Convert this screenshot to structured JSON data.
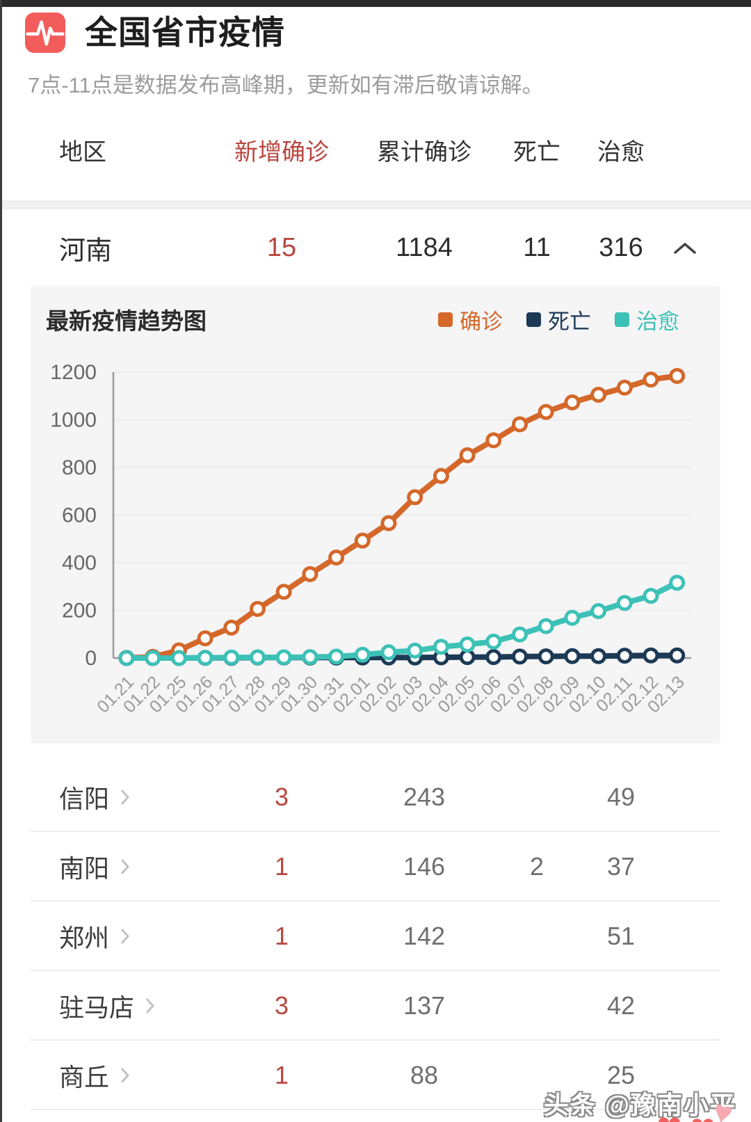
{
  "header": {
    "title": "全国省市疫情",
    "subtitle": "7点-11点是数据发布高峰期，更新如有滞后敬请谅解。"
  },
  "table": {
    "columns": {
      "region": "地区",
      "new_confirmed": "新增确诊",
      "total_confirmed": "累计确诊",
      "deaths": "死亡",
      "cured": "治愈"
    },
    "province": {
      "name": "河南",
      "new_confirmed": "15",
      "total_confirmed": "1184",
      "deaths": "11",
      "cured": "316"
    },
    "cities": [
      {
        "name": "信阳",
        "new_confirmed": "3",
        "total_confirmed": "243",
        "deaths": "",
        "cured": "49"
      },
      {
        "name": "南阳",
        "new_confirmed": "1",
        "total_confirmed": "146",
        "deaths": "2",
        "cured": "37"
      },
      {
        "name": "郑州",
        "new_confirmed": "1",
        "total_confirmed": "142",
        "deaths": "",
        "cured": "51"
      },
      {
        "name": "驻马店",
        "new_confirmed": "3",
        "total_confirmed": "137",
        "deaths": "",
        "cured": "42"
      },
      {
        "name": "商丘",
        "new_confirmed": "1",
        "total_confirmed": "88",
        "deaths": "",
        "cured": "25"
      }
    ]
  },
  "chart": {
    "title": "最新疫情趋势图"
  },
  "chart_data": {
    "type": "line",
    "title": "最新疫情趋势图",
    "x": [
      "01.21",
      "01.22",
      "01.25",
      "01.26",
      "01.27",
      "01.28",
      "01.29",
      "01.30",
      "01.31",
      "02.01",
      "02.02",
      "02.03",
      "02.04",
      "02.05",
      "02.06",
      "02.07",
      "02.08",
      "02.09",
      "02.10",
      "02.11",
      "02.12",
      "02.13"
    ],
    "series": [
      {
        "name": "确诊",
        "color": "#d4682a",
        "values": [
          1,
          5,
          32,
          83,
          128,
          206,
          278,
          352,
          422,
          493,
          566,
          675,
          764,
          851,
          914,
          981,
          1033,
          1073,
          1105,
          1135,
          1169,
          1184
        ]
      },
      {
        "name": "死亡",
        "color": "#1c3a55",
        "values": [
          0,
          0,
          0,
          1,
          1,
          2,
          2,
          2,
          2,
          2,
          2,
          2,
          3,
          4,
          4,
          6,
          7,
          8,
          8,
          10,
          11,
          11
        ]
      },
      {
        "name": "治愈",
        "color": "#3dc1b7",
        "values": [
          0,
          0,
          0,
          1,
          2,
          3,
          3,
          4,
          6,
          14,
          24,
          31,
          47,
          57,
          69,
          99,
          134,
          169,
          197,
          231,
          261,
          316
        ]
      }
    ],
    "ylim": [
      0,
      1200
    ],
    "yticks": [
      0,
      200,
      400,
      600,
      800,
      1000,
      1200
    ],
    "grid": true,
    "legend_position": "top-right",
    "xlabel": "",
    "ylabel": ""
  },
  "footer": {
    "watermark": "头条 @豫南小平",
    "heart_glyph": "♥"
  },
  "colors": {
    "accent_red": "#b9463f",
    "icon_bg": "#f25d5b",
    "panel_bg": "#f5f5f6",
    "confirmed": "#d4682a",
    "deaths": "#1c3a55",
    "cured": "#3dc1b7",
    "heart_red": "#f1605f",
    "heart_pink": "#f6a9b0"
  }
}
